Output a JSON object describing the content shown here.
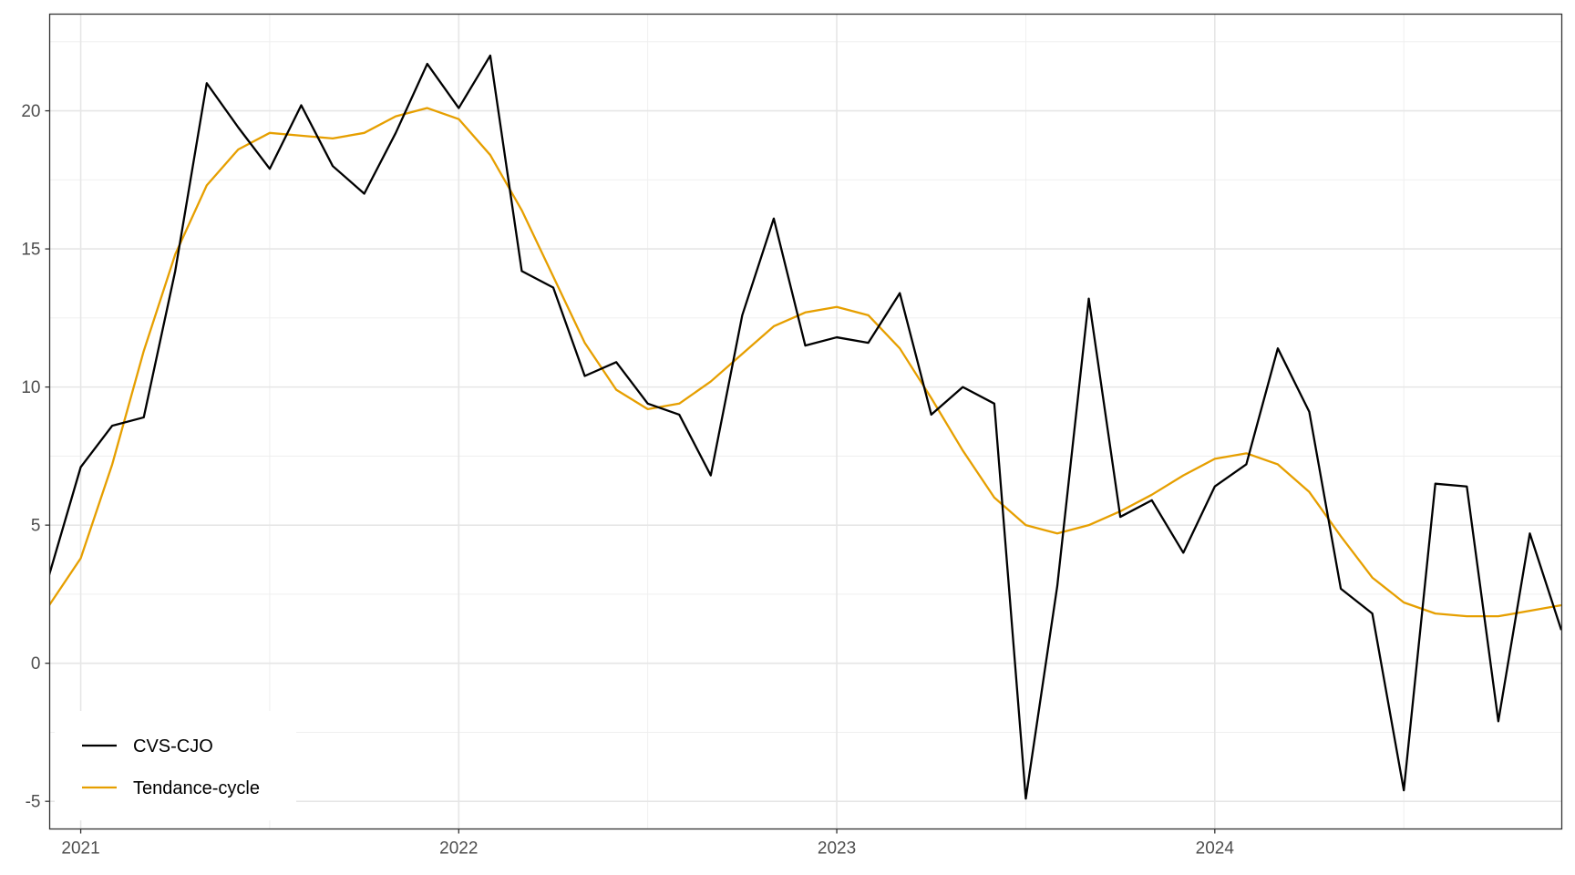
{
  "chart_data": {
    "type": "line",
    "title": "",
    "xlabel": "",
    "ylabel": "",
    "x_start": "2020-12",
    "x_step": "month",
    "x_ticks": [
      "2021",
      "2022",
      "2023",
      "2024"
    ],
    "y_ticks": [
      "-5",
      "0",
      "5",
      "10",
      "15",
      "20"
    ],
    "ylim": [
      -6,
      23.5
    ],
    "grid": true,
    "legend_position": "bottom-left",
    "series": [
      {
        "name": "CVS-CJO",
        "color": "#000000",
        "values": [
          3.2,
          7.1,
          8.6,
          8.9,
          14.2,
          21.0,
          19.4,
          17.9,
          20.2,
          18.0,
          17.0,
          19.2,
          21.7,
          20.1,
          22.0,
          14.2,
          13.6,
          10.4,
          10.9,
          9.4,
          9.0,
          6.8,
          12.6,
          16.1,
          11.5,
          11.8,
          11.6,
          13.4,
          9.0,
          10.0,
          9.4,
          -4.9,
          2.8,
          13.2,
          5.3,
          5.9,
          4.0,
          6.4,
          7.2,
          11.4,
          9.1,
          2.7,
          1.8,
          -4.6,
          6.5,
          6.4,
          -2.1,
          4.7,
          1.2
        ]
      },
      {
        "name": "Tendance-cycle",
        "color": "#E69F00",
        "values": [
          2.1,
          3.8,
          7.2,
          11.3,
          14.8,
          17.3,
          18.6,
          19.2,
          19.1,
          19.0,
          19.2,
          19.8,
          20.1,
          19.7,
          18.4,
          16.4,
          14.0,
          11.6,
          9.9,
          9.2,
          9.4,
          10.2,
          11.2,
          12.2,
          12.7,
          12.9,
          12.6,
          11.4,
          9.6,
          7.7,
          6.0,
          5.0,
          4.7,
          5.0,
          5.5,
          6.1,
          6.8,
          7.4,
          7.6,
          7.2,
          6.2,
          4.6,
          3.1,
          2.2,
          1.8,
          1.7,
          1.7,
          1.9,
          2.1
        ]
      }
    ]
  }
}
